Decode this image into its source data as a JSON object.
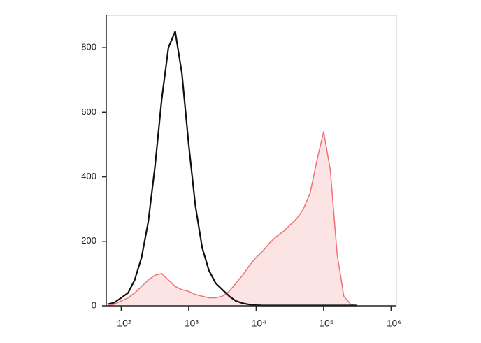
{
  "chart_data": {
    "type": "histogram-overlay",
    "x": [
      63,
      79,
      100,
      126,
      158,
      200,
      251,
      316,
      398,
      501,
      631,
      794,
      1000,
      1259,
      1585,
      1995,
      2512,
      3162,
      3981,
      5012,
      6310,
      7943,
      10000,
      12589,
      15849,
      19953,
      25119,
      31623,
      39811,
      50119,
      63096,
      79433,
      100000,
      125893,
      158489,
      199526,
      251189,
      316228
    ],
    "series": [
      {
        "color": "#f07075",
        "fill": "#fde4e4",
        "filled": true,
        "values": [
          0,
          5,
          15,
          25,
          40,
          60,
          80,
          95,
          100,
          80,
          60,
          50,
          45,
          35,
          30,
          25,
          25,
          30,
          45,
          70,
          95,
          125,
          150,
          170,
          195,
          215,
          230,
          250,
          270,
          300,
          350,
          450,
          540,
          420,
          160,
          30,
          5,
          0
        ]
      },
      {
        "color": "#111111",
        "filled": false,
        "values": [
          5,
          10,
          25,
          40,
          80,
          150,
          260,
          430,
          640,
          800,
          850,
          720,
          500,
          310,
          180,
          110,
          70,
          50,
          30,
          15,
          8,
          4,
          2,
          1,
          1,
          1,
          1,
          1,
          1,
          1,
          1,
          1,
          1,
          1,
          1,
          1,
          1,
          1
        ]
      }
    ],
    "xlog": true,
    "xlim": [
      60,
      1200000
    ],
    "xticks": [
      {
        "value": 100,
        "label": "10²"
      },
      {
        "value": 1000,
        "label": "10³"
      },
      {
        "value": 10000,
        "label": "10⁴"
      },
      {
        "value": 100000,
        "label": "10⁵"
      },
      {
        "value": 1000000,
        "label": "10⁶"
      }
    ],
    "ylim": [
      0,
      900
    ],
    "yticks": [
      0,
      200,
      400,
      600,
      800
    ]
  }
}
